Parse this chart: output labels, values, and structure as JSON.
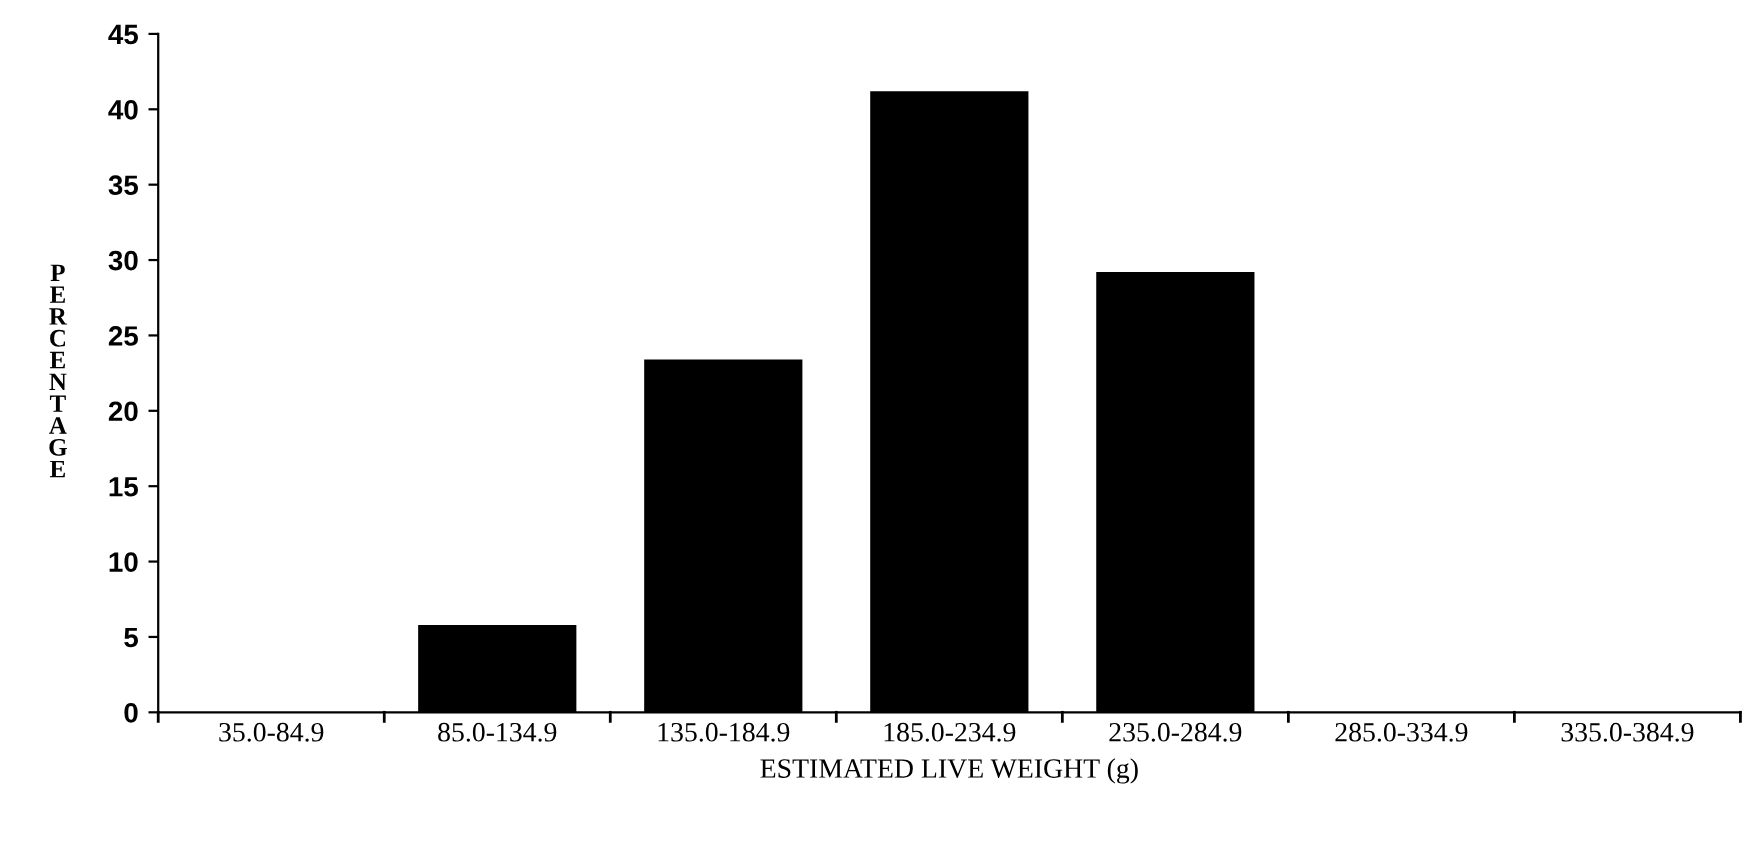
{
  "chart_data": {
    "type": "bar",
    "xlabel": "ESTIMATED LIVE WEIGHT (g)",
    "ylabel": "PERCENTAGE",
    "categories": [
      "35.0-84.9",
      "85.0-134.9",
      "135.0-184.9",
      "185.0-234.9",
      "235.0-284.9",
      "285.0-334.9",
      "335.0-384.9"
    ],
    "values": [
      0,
      5.8,
      23.4,
      41.2,
      29.2,
      0,
      0
    ],
    "color": "#000000",
    "ylim": [
      0,
      45
    ],
    "yticks": [
      0,
      5,
      10,
      15,
      20,
      25,
      30,
      35,
      40,
      45
    ],
    "grid": false,
    "legend": false
  }
}
